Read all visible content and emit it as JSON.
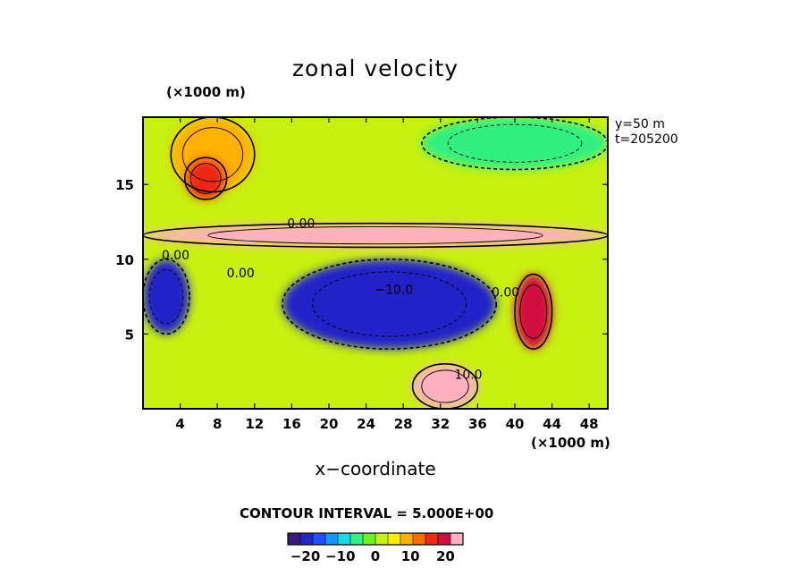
{
  "chart_data": {
    "type": "heatmap",
    "title": "zonal velocity",
    "xlabel": "x−coordinate",
    "x_unit": "(×1000 m)",
    "y_unit": "(×1000 m)",
    "xlim": [
      0,
      50
    ],
    "ylim": [
      0,
      19.5
    ],
    "x_ticks": [
      4,
      8,
      12,
      16,
      20,
      24,
      28,
      32,
      36,
      40,
      44,
      48
    ],
    "y_ticks": [
      5,
      10,
      15
    ],
    "annotations": {
      "y_position": "y=50 m",
      "time": "t=205200",
      "contour_interval": "CONTOUR INTERVAL = 5.000E+00"
    },
    "contour_labels": [
      {
        "text": "0.00",
        "x": 17,
        "y": 12.1
      },
      {
        "text": "0.00",
        "x": 3.5,
        "y": 10
      },
      {
        "text": "0.00",
        "x": 10.5,
        "y": 8.8
      },
      {
        "text": "−10.0",
        "x": 27,
        "y": 7.7
      },
      {
        "text": "0.00",
        "x": 39,
        "y": 7.5
      },
      {
        "text": "10.0",
        "x": 35,
        "y": 2
      }
    ],
    "colorbar": {
      "range": [
        -25,
        25
      ],
      "tick_labels": [
        "−20",
        "−10",
        "0",
        "10",
        "20"
      ],
      "tick_values": [
        -20,
        -10,
        0,
        10,
        20
      ],
      "colors": [
        "#3a1c80",
        "#2424c8",
        "#2050ff",
        "#1098ff",
        "#18d8e8",
        "#30f080",
        "#70f020",
        "#c8f010",
        "#f8f000",
        "#ffb000",
        "#ff6a00",
        "#f02818",
        "#d01040",
        "#ffb0c0"
      ]
    },
    "features": [
      {
        "desc": "warm band",
        "value": 22,
        "x": [
          0,
          50
        ],
        "y": [
          10.8,
          12.4
        ]
      },
      {
        "desc": "yellow patch",
        "value": 10,
        "x": [
          3,
          12
        ],
        "y": [
          14.5,
          19.5
        ]
      },
      {
        "desc": "orange core",
        "value": 16,
        "x": [
          4.5,
          9
        ],
        "y": [
          14,
          16.8
        ]
      },
      {
        "desc": "cyan patch",
        "value": -5,
        "x": [
          30,
          50
        ],
        "y": [
          16,
          19.5
        ]
      },
      {
        "desc": "blue trough",
        "value": -18,
        "x": [
          15,
          38
        ],
        "y": [
          4,
          10
        ]
      },
      {
        "desc": "red cell east",
        "value": 20,
        "x": [
          40,
          44
        ],
        "y": [
          4,
          9
        ]
      },
      {
        "desc": "blue cell west",
        "value": -20,
        "x": [
          0,
          5
        ],
        "y": [
          5,
          10
        ]
      },
      {
        "desc": "red cell south",
        "value": 22,
        "x": [
          29,
          36
        ],
        "y": [
          0,
          3
        ]
      }
    ]
  }
}
